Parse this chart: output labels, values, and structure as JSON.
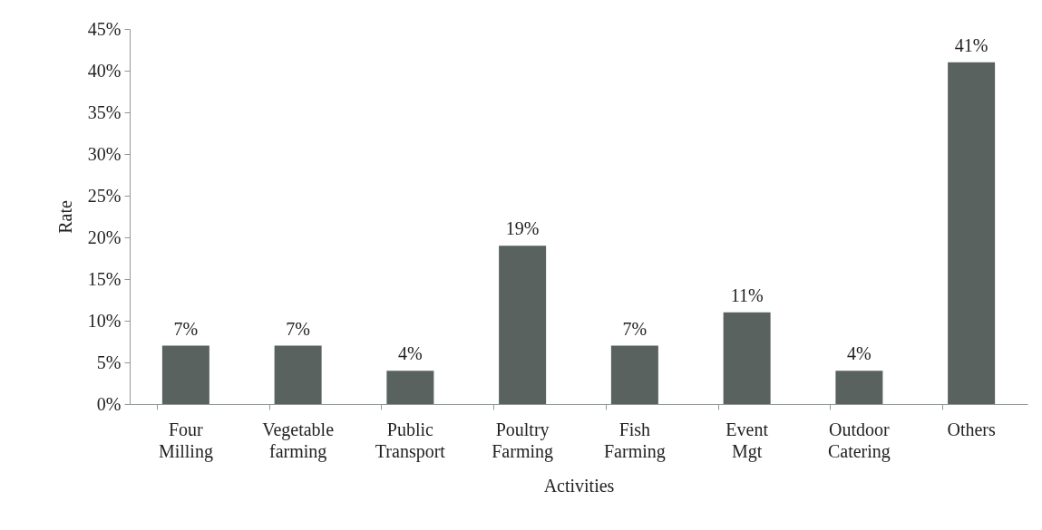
{
  "chart_data": {
    "type": "bar",
    "xlabel": "Activities",
    "ylabel": "Rate",
    "categories": [
      "Four Milling",
      "Vegetable farming",
      "Public Transport",
      "Poultry Farming",
      "Fish Farming",
      "Event Mgt",
      "Outdoor Catering",
      "Others"
    ],
    "values": [
      7,
      7,
      4,
      19,
      7,
      11,
      4,
      41
    ],
    "value_labels": [
      "7%",
      "7%",
      "4%",
      "19%",
      "7%",
      "11%",
      "4%",
      "41%"
    ],
    "color": "#59625f",
    "ylim": [
      0,
      45
    ],
    "yticks": [
      {
        "value": 0,
        "label": "0%"
      },
      {
        "value": 5,
        "label": "5%"
      },
      {
        "value": 10,
        "label": "10%"
      },
      {
        "value": 15,
        "label": "15%"
      },
      {
        "value": 20,
        "label": "20%"
      },
      {
        "value": 25,
        "label": "25%"
      },
      {
        "value": 30,
        "label": "30%"
      },
      {
        "value": 35,
        "label": "35%"
      },
      {
        "value": 40,
        "label": "40%"
      },
      {
        "value": 45,
        "label": "45%"
      }
    ],
    "grid": false
  }
}
